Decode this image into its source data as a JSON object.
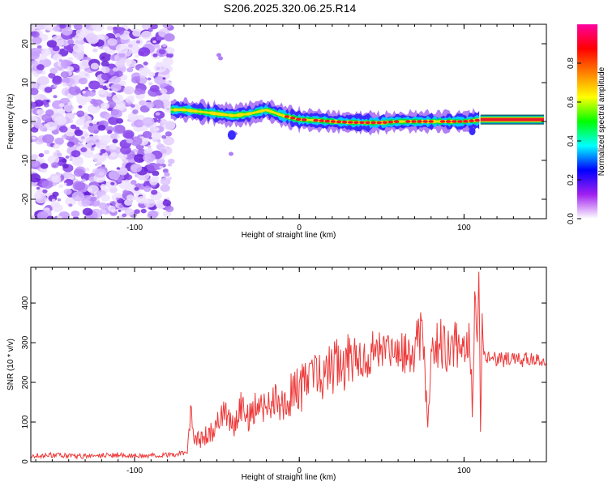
{
  "page": {
    "title": "S206.2025.320.06.25.R14"
  },
  "colors": {
    "snr_line": "#ee3a3a",
    "ridge_core": "#e8192c",
    "axis": "#000000"
  },
  "chart_data": [
    {
      "type": "heatmap",
      "title": "S206.2025.320.06.25.R14",
      "xlabel": "Height of straight line (km)",
      "ylabel": "Frequency (Hz)",
      "xlim": [
        -163,
        150
      ],
      "ylim": [
        -25,
        25
      ],
      "xticks": [
        -100,
        0,
        100
      ],
      "xtick_labels": [
        "-100",
        "0",
        "100"
      ],
      "yticks": [
        -20,
        -10,
        0,
        10,
        20
      ],
      "ytick_labels": [
        "-20",
        "-10",
        "0",
        "10",
        "20"
      ],
      "noise_region_x": [
        -163,
        -78
      ],
      "ridge": {
        "x": [
          -78,
          -70,
          -60,
          -50,
          -40,
          -30,
          -20,
          -10,
          0,
          10,
          20,
          30,
          40,
          50,
          60,
          70,
          80,
          90,
          100,
          108,
          112,
          150
        ],
        "y": [
          3,
          3,
          2.5,
          2,
          1.5,
          2,
          3,
          1.5,
          0.5,
          0.3,
          0,
          -0.2,
          -0.3,
          -0.3,
          0,
          0,
          0,
          0,
          0,
          0.3,
          0.5,
          0.5
        ]
      },
      "colorbar": {
        "label": "Normalized spectral amplitude",
        "range": [
          0,
          1
        ],
        "ticks": [
          0.0,
          0.2,
          0.4,
          0.6,
          0.8
        ],
        "tick_labels": [
          "0.0",
          "0.2",
          "0.4",
          "0.6",
          "0.8"
        ],
        "stops": [
          "#ffffff",
          "#a020f0",
          "#0000ff",
          "#00ffff",
          "#00ff00",
          "#ffff00",
          "#ff8000",
          "#ff0000",
          "#ff00a0"
        ]
      }
    },
    {
      "type": "line",
      "xlabel": "Height of straight line (km)",
      "ylabel": "SNR (10 * v/v)",
      "xlim": [
        -163,
        150
      ],
      "ylim": [
        0,
        490
      ],
      "xticks": [
        -100,
        0,
        100
      ],
      "xtick_labels": [
        "-100",
        "0",
        "100"
      ],
      "yticks": [
        0,
        100,
        200,
        300,
        400
      ],
      "ytick_labels": [
        "0",
        "100",
        "200",
        "300",
        "400"
      ],
      "series": [
        {
          "name": "SNR",
          "x": [
            -163,
            -150,
            -130,
            -110,
            -90,
            -75,
            -68,
            -66,
            -64,
            -60,
            -55,
            -50,
            -45,
            -40,
            -35,
            -30,
            -25,
            -20,
            -15,
            -10,
            -5,
            0,
            5,
            10,
            15,
            20,
            25,
            30,
            35,
            40,
            45,
            50,
            55,
            60,
            65,
            70,
            75,
            78,
            80,
            85,
            90,
            95,
            100,
            103,
            105,
            107,
            108,
            109,
            110,
            111,
            112,
            115,
            120,
            130,
            140,
            150
          ],
          "y": [
            15,
            16,
            14,
            17,
            15,
            18,
            25,
            140,
            60,
            55,
            70,
            90,
            120,
            95,
            140,
            110,
            150,
            130,
            160,
            140,
            170,
            180,
            200,
            220,
            230,
            240,
            250,
            255,
            260,
            265,
            270,
            270,
            268,
            275,
            265,
            280,
            330,
            70,
            270,
            300,
            280,
            310,
            270,
            330,
            150,
            440,
            280,
            480,
            70,
            420,
            260,
            270,
            255,
            260,
            255,
            250
          ]
        }
      ]
    }
  ]
}
